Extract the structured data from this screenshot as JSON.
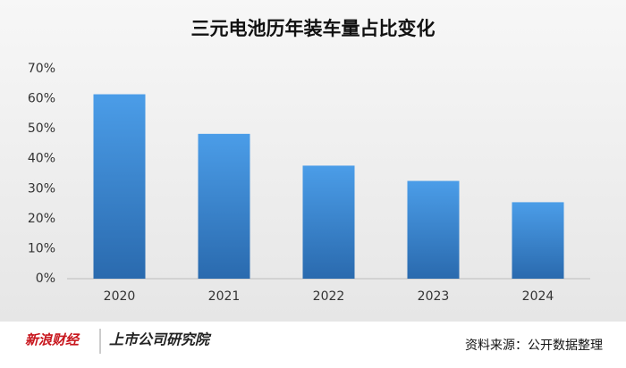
{
  "chart_data": {
    "type": "bar",
    "title": "三元电池历年装车量占比变化",
    "categories": [
      "2020",
      "2021",
      "2022",
      "2023",
      "2024"
    ],
    "values": [
      61.5,
      48.3,
      37.7,
      32.6,
      25.5
    ],
    "color": "#3f8ad8",
    "ylim": [
      0,
      70
    ],
    "yticks": [
      {
        "value": 0,
        "label": "0%"
      },
      {
        "value": 10,
        "label": "10%"
      },
      {
        "value": 20,
        "label": "20%"
      },
      {
        "value": 30,
        "label": "30%"
      },
      {
        "value": 40,
        "label": "40%"
      },
      {
        "value": 50,
        "label": "50%"
      },
      {
        "value": 60,
        "label": "60%"
      },
      {
        "value": 70,
        "label": "70%"
      }
    ],
    "grid": false,
    "source": "资料来源：公开数据整理",
    "logo": "新浪财经",
    "institute": "上市公司研究院"
  }
}
